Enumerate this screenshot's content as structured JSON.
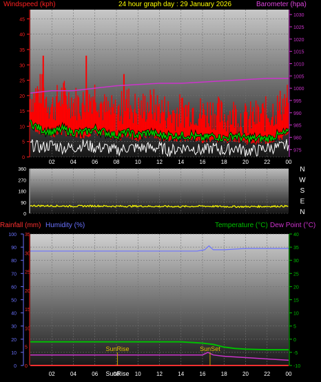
{
  "header": {
    "windspeed_label": "Windspeed (kph)",
    "date_title": "24 hour graph day : 29 January 2026",
    "barometer_label": "Barometer (hpa)"
  },
  "panel3_labels": {
    "rainfall": "Rainfall (mm)",
    "humidity": "Humidity (%)",
    "temperature": "Temperature (°C)",
    "dewpoint": "Dew Point (°C)",
    "sunrise": "SunRise",
    "sunset": "SunSet"
  },
  "colors": {
    "wind_gust": "#ff0000",
    "wind_avg": "#00cc00",
    "wind_dir_trace": "#ffffff",
    "barometer": "#cc33cc",
    "direction": "#ffff00",
    "humidity": "#6a72ff",
    "temperature": "#00c000",
    "dewpoint": "#cc33cc",
    "rainfall": "#ff3030",
    "sun_marker": "#c8a000"
  },
  "x_ticks": [
    "02",
    "04",
    "06",
    "08",
    "10",
    "12",
    "14",
    "16",
    "18",
    "20",
    "22",
    "00"
  ],
  "x_ticks_bottom": [
    "02",
    "04",
    "06",
    "08",
    "10",
    "12",
    "14",
    "16",
    "18",
    "20",
    "22",
    "00"
  ],
  "chart_data": [
    {
      "type": "line",
      "name": "wind-barometer",
      "x_range": [
        0,
        24
      ],
      "y_left": {
        "label": "Windspeed (kph)",
        "ticks": [
          "0",
          "5",
          "10",
          "15",
          "20",
          "25",
          "30",
          "35",
          "40",
          "45"
        ],
        "range": [
          0,
          48
        ]
      },
      "y_right": {
        "label": "Barometer (hpa)",
        "ticks": [
          "975",
          "980",
          "985",
          "990",
          "995",
          "1000",
          "1005",
          "1010",
          "1015",
          "1020",
          "1025",
          "1030"
        ],
        "range": [
          972,
          1032
        ]
      },
      "series": [
        {
          "key": "gust",
          "x": [
            0,
            1,
            2,
            3,
            4,
            5,
            6,
            7,
            8,
            9,
            10,
            11,
            12,
            13,
            14,
            15,
            16,
            17,
            18,
            19,
            20,
            21,
            22,
            23,
            24
          ],
          "values": [
            19,
            22,
            16,
            20,
            18,
            17,
            21,
            15,
            14,
            18,
            15,
            17,
            16,
            14,
            15,
            16,
            14,
            15,
            13,
            14,
            12,
            13,
            14,
            16,
            19
          ]
        },
        {
          "key": "gust_peaks",
          "x": [
            1.2,
            5.2,
            8.7
          ],
          "values": [
            33,
            33,
            27
          ]
        },
        {
          "key": "average",
          "x": [
            0,
            1,
            2,
            3,
            4,
            5,
            6,
            7,
            8,
            9,
            10,
            11,
            12,
            13,
            14,
            15,
            16,
            17,
            18,
            19,
            20,
            21,
            22,
            23,
            24
          ],
          "values": [
            11,
            9,
            8,
            9,
            8,
            8,
            9,
            8,
            7,
            8,
            7,
            8,
            7,
            7,
            7,
            7,
            6,
            7,
            6,
            7,
            6,
            6,
            6,
            7,
            8
          ]
        },
        {
          "key": "direction_speed",
          "x": [
            0,
            1,
            2,
            3,
            4,
            5,
            6,
            7,
            8,
            9,
            10,
            11,
            12,
            13,
            14,
            15,
            16,
            17,
            18,
            19,
            20,
            21,
            22,
            23,
            24
          ],
          "values": [
            4,
            3,
            4,
            3,
            3,
            4,
            3,
            3,
            2,
            3,
            3,
            3,
            3,
            2,
            3,
            3,
            2,
            3,
            2,
            3,
            2,
            2,
            3,
            3,
            4
          ]
        },
        {
          "key": "barometer",
          "x": [
            0,
            2,
            4,
            6,
            8,
            10,
            12,
            14,
            16,
            18,
            20,
            22,
            24
          ],
          "values": [
            998,
            999,
            999,
            1000,
            1001,
            1001.5,
            1002,
            1002,
            1002.5,
            1003,
            1003.5,
            1004,
            1004
          ]
        }
      ]
    },
    {
      "type": "line",
      "name": "wind-direction",
      "x_range": [
        0,
        24
      ],
      "y_left": {
        "ticks": [
          "0",
          "90",
          "180",
          "270",
          "360"
        ],
        "range": [
          0,
          360
        ]
      },
      "y_right": {
        "ticks": [
          "N",
          "W",
          "S",
          "E",
          "N"
        ]
      },
      "series": [
        {
          "key": "direction",
          "x": [
            0,
            2,
            4,
            6,
            8,
            10,
            12,
            14,
            16,
            18,
            20,
            22,
            24
          ],
          "values": [
            62,
            60,
            58,
            60,
            57,
            58,
            56,
            55,
            58,
            55,
            54,
            56,
            58
          ]
        }
      ]
    },
    {
      "type": "line",
      "name": "rain-humidity-temperature",
      "x_range": [
        0,
        24
      ],
      "y_left": {
        "label": "Rainfall (mm)",
        "ticks": [
          "0",
          "10",
          "20",
          "30",
          "40",
          "50",
          "60",
          "70",
          "80",
          "90",
          "100"
        ],
        "range": [
          0,
          100
        ]
      },
      "y_left2": {
        "label": "Humidity (%)",
        "ticks": [
          "0",
          "5",
          "10",
          "15",
          "20",
          "25",
          "30",
          "35"
        ],
        "range": [
          0,
          35
        ]
      },
      "y_right": {
        "label": "Temperature (°C)",
        "ticks": [
          "-10",
          "-5",
          "0",
          "5",
          "10",
          "15",
          "20",
          "25",
          "30",
          "35",
          "40"
        ],
        "range": [
          -10,
          40
        ]
      },
      "series": [
        {
          "key": "humidity",
          "x": [
            0,
            2,
            4,
            6,
            8,
            10,
            12,
            14,
            15.5,
            16.2,
            16.6,
            17,
            18,
            20,
            22,
            24
          ],
          "values": [
            87,
            87,
            87,
            87,
            87,
            87,
            87,
            87,
            87,
            88,
            91,
            88,
            88,
            89,
            89,
            89
          ]
        },
        {
          "key": "temperature",
          "x": [
            0,
            2,
            4,
            6,
            8,
            10,
            12,
            14,
            16,
            17,
            18,
            19,
            20,
            22,
            24
          ],
          "values": [
            -1,
            -1,
            -1,
            -1,
            -1,
            -1,
            -1,
            -1,
            -1.5,
            -2,
            -3,
            -3.5,
            -3.8,
            -4,
            -4
          ]
        },
        {
          "key": "dewpoint",
          "x": [
            0,
            2,
            4,
            6,
            8,
            10,
            12,
            14,
            16,
            16.5,
            17,
            18,
            20,
            22,
            24
          ],
          "values": [
            -6,
            -6,
            -6,
            -6,
            -6,
            -6,
            -6,
            -6,
            -6,
            -5,
            -6,
            -6.5,
            -7,
            -7.5,
            -8
          ]
        },
        {
          "key": "rainfall",
          "x": [
            0,
            24
          ],
          "values": [
            0,
            0
          ]
        }
      ],
      "sunrise_hour": 8.1,
      "sunset_hour": 16.7
    }
  ]
}
